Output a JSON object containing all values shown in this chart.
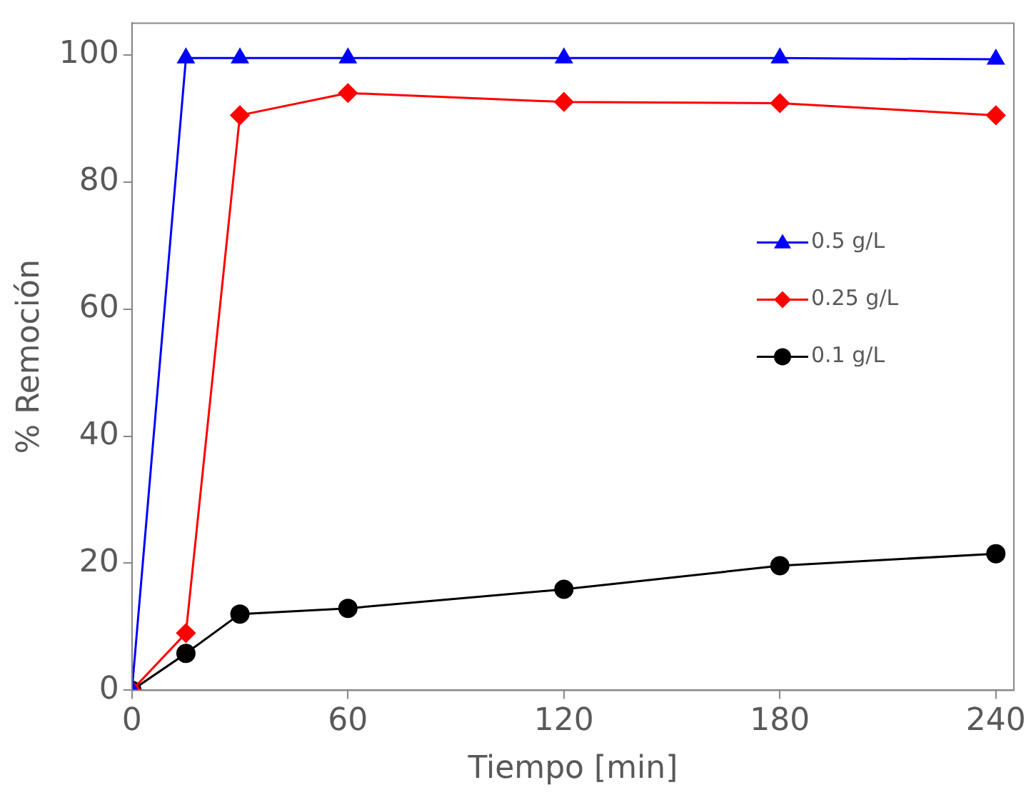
{
  "chart_data": {
    "type": "line",
    "xlabel": "Tiempo [min]",
    "ylabel": "% Remoción",
    "x": [
      0,
      15,
      30,
      60,
      120,
      180,
      240
    ],
    "xlim": [
      0,
      245
    ],
    "xticks": [
      0,
      60,
      120,
      180,
      240
    ],
    "ylim": [
      0,
      105
    ],
    "yticks": [
      0,
      20,
      40,
      60,
      80,
      100
    ],
    "grid": false,
    "legend": "right",
    "series": [
      {
        "name": "0.5 g/L",
        "color": "#0000ff",
        "marker": "triangle",
        "values": [
          0,
          99.5,
          99.5,
          99.5,
          99.5,
          99.5,
          99.3
        ]
      },
      {
        "name": "0.25 g/L",
        "color": "#ff0000",
        "marker": "diamond",
        "values": [
          0,
          9,
          90.5,
          94,
          92.6,
          92.4,
          90.5
        ]
      },
      {
        "name": "0.1 g/L",
        "color": "#000000",
        "marker": "circle",
        "values": [
          0,
          5.8,
          12,
          12.9,
          15.9,
          19.6,
          21.5
        ]
      }
    ]
  }
}
